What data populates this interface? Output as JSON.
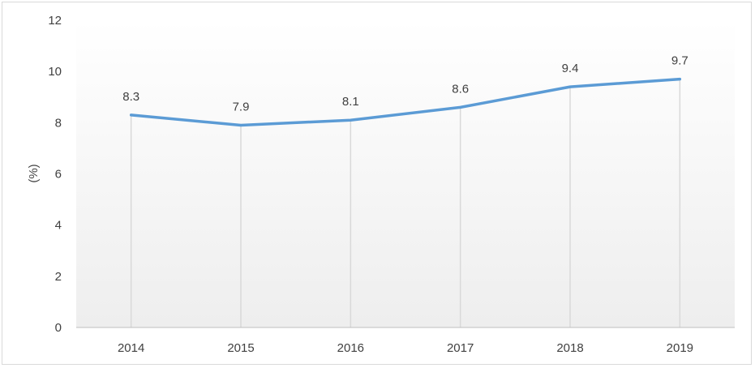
{
  "chart_data": {
    "type": "line",
    "title": "",
    "xlabel": "",
    "ylabel": "(%)",
    "categories": [
      "2014",
      "2015",
      "2016",
      "2017",
      "2018",
      "2019"
    ],
    "series": [
      {
        "values": [
          8.3,
          7.9,
          8.1,
          8.6,
          9.4,
          9.7
        ],
        "color": "#5b9bd5"
      }
    ],
    "ylim": [
      0,
      12
    ],
    "yticks": [
      0,
      2,
      4,
      6,
      8,
      10,
      12
    ],
    "data_labels": [
      "8.3",
      "7.9",
      "8.1",
      "8.6",
      "9.4",
      "9.7"
    ],
    "vertical_gridlines": true,
    "horizontal_gridlines": false,
    "legend": "none"
  }
}
